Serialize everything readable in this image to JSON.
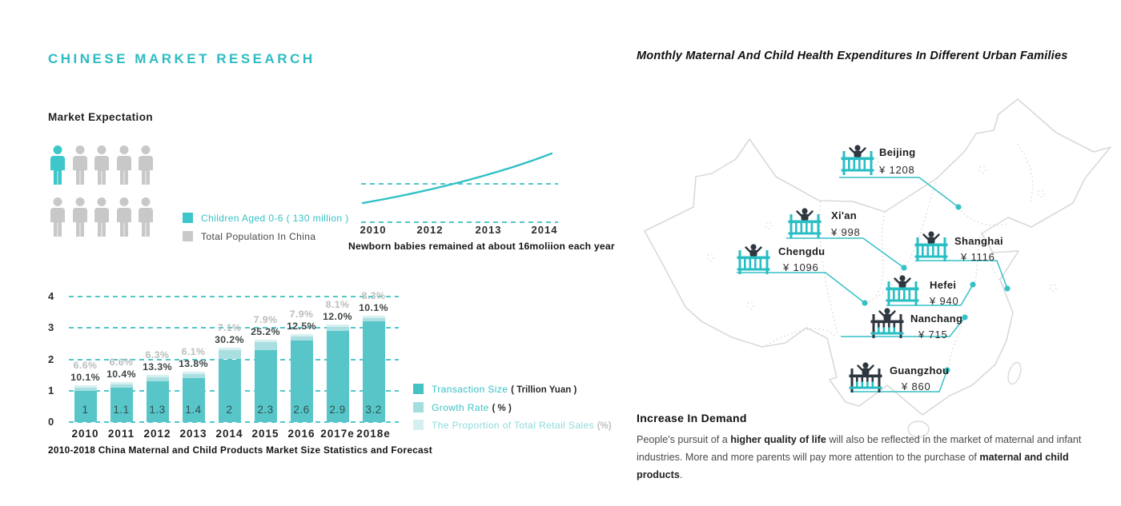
{
  "theme": {
    "teal": "#2cbcc2",
    "teal_icon": "#2ebfc5",
    "bar_main": "#58c6c9",
    "bar_growth": "#a9dfe1",
    "bar_prop": "#d6f0f1",
    "grid_teal": "#53c6ca",
    "gray_icon": "#c8c8c8",
    "dark": "#2e3640",
    "map_stroke": "#d9d9d9",
    "light_label": "#b9bdbd"
  },
  "left": {
    "title": "CHINESE MARKET RESEARCH",
    "section_title": "Market Expectation",
    "population": {
      "total_icons": 10,
      "highlighted_icons": 1,
      "legend": [
        {
          "label": "Children Aged 0-6 ( 130 million )",
          "swatch": "#3ec7ca",
          "label_color": "#35c1c5"
        },
        {
          "label": "Total Population In China",
          "swatch": "#c9c9c9",
          "label_color": "#454545"
        }
      ]
    }
  },
  "right": {
    "title": "Monthly Maternal And Child Health Expenditures In Different Urban Families",
    "map": {
      "region": "China",
      "currency": "¥",
      "cities": [
        {
          "name": "Beijing",
          "value": "¥ 1208",
          "variant": "teal"
        },
        {
          "name": "Xi'an",
          "value": "¥ 998",
          "variant": "teal"
        },
        {
          "name": "Chengdu",
          "value": "¥ 1096",
          "variant": "teal"
        },
        {
          "name": "Shanghai",
          "value": "¥ 1116",
          "variant": "teal"
        },
        {
          "name": "Hefei",
          "value": "¥ 940",
          "variant": "teal"
        },
        {
          "name": "Nanchang",
          "value": "¥ 715",
          "variant": "dark"
        },
        {
          "name": "Guangzhou",
          "value": "¥ 860",
          "variant": "dark"
        }
      ]
    },
    "demand": {
      "heading": "Increase In Demand",
      "segments": [
        {
          "text": "People's pursuit of a ",
          "bold": false
        },
        {
          "text": "higher quality of life",
          "bold": true
        },
        {
          "text": " will also be reflected in the market of maternal and infant industries. More and more parents will pay more attention to the purchase of ",
          "bold": false
        },
        {
          "text": "maternal and child products",
          "bold": true
        },
        {
          "text": ".",
          "bold": false
        }
      ]
    }
  },
  "chart_data": [
    {
      "type": "line",
      "title": "Newborn babies remained at about 16moliion each year",
      "x": [
        "2010",
        "2012",
        "2013",
        "2014"
      ],
      "description": "Rising teal curve of newborn numbers, crossing the upper of two dashed reference lines around 2012; about 16 million newborns each year",
      "reference_lines": 2,
      "legend_position": "none",
      "grid": "dashed-horizontal"
    },
    {
      "type": "bar",
      "title": "2010-2018 China Maternal and Child Products Market Size Statistics and Forecast",
      "categories": [
        "2010",
        "2011",
        "2012",
        "2013",
        "2014",
        "2015",
        "2016",
        "2017e",
        "2018e"
      ],
      "series": [
        {
          "name": "Transaction Size ( Trillion Yuan )",
          "values": [
            1,
            1.1,
            1.3,
            1.4,
            2,
            2.3,
            2.6,
            2.9,
            3.2
          ],
          "labels": [
            "1",
            "1.1",
            "1.3",
            "1.4",
            "2",
            "2.3",
            "2.6",
            "2.9",
            "3.2"
          ]
        },
        {
          "name": "Growth Rate ( % )",
          "values": [
            10.1,
            10.4,
            13.3,
            13.8,
            30.2,
            25.2,
            12.5,
            12.0,
            10.1
          ],
          "labels": [
            "10.1%",
            "10.4%",
            "13.3%",
            "13.8%",
            "30.2%",
            "25.2%",
            "12.5%",
            "12.0%",
            "10.1%"
          ]
        },
        {
          "name": "The Proportion of Total Retail Sales (%)",
          "values": [
            6.6,
            6.6,
            6.3,
            6.1,
            7.1,
            7.9,
            7.9,
            8.1,
            8.3
          ],
          "labels": [
            "6.6%",
            "6.6%",
            "6.3%",
            "6.1%",
            "7.1%",
            "7.9%",
            "7.9%",
            "8.1%",
            "8.3%"
          ]
        }
      ],
      "ylim": [
        0,
        4
      ],
      "yticks": [
        0,
        1,
        2,
        3,
        4
      ],
      "grid": "dashed-horizontal",
      "legend_position": "right",
      "legend": [
        {
          "label": "Transaction Size",
          "suffix": "( Trillion Yuan )",
          "swatch": "#45c2c6",
          "label_color": "#35c1c5",
          "suffix_color": "#2b2b2b"
        },
        {
          "label": "Growth Rate",
          "suffix": "( % )",
          "swatch": "#a5dee0",
          "label_color": "#3fc4c7",
          "suffix_color": "#2b2b2b"
        },
        {
          "label": "The Proportion of Total Retail Sales",
          "suffix": "(%)",
          "swatch": "#d6f0f1",
          "label_color": "#8edadc",
          "suffix_color": "#c0c0c0"
        }
      ]
    }
  ]
}
